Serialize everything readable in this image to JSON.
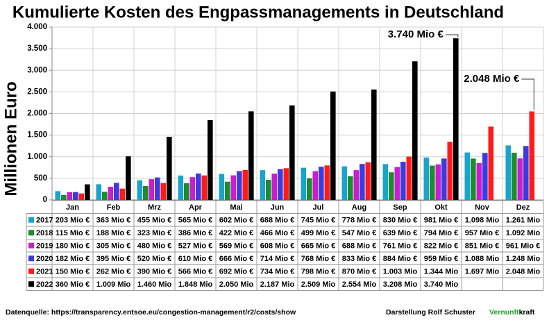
{
  "chart_data": {
    "type": "bar",
    "title": "Kumulierte Kosten des Engpassmanagements in Deutschland",
    "y_label": "Millionen Euro",
    "categories": [
      "Jan",
      "Feb",
      "Mrz",
      "Apr",
      "Mai",
      "Jun",
      "Jul",
      "Aug",
      "Sep",
      "Okt",
      "Nov",
      "Dez"
    ],
    "ylim": [
      0,
      4000
    ],
    "yticks": [
      0,
      500,
      {
        "value": 1000,
        "label": "1.000"
      },
      {
        "value": 1500,
        "label": "1.500"
      },
      {
        "value": 2000,
        "label": "2.000"
      },
      {
        "value": 2500,
        "label": "2.500"
      },
      {
        "value": 3000,
        "label": "3.000"
      },
      {
        "value": 3500,
        "label": "3.500"
      },
      {
        "value": 4000,
        "label": "4.000"
      }
    ],
    "grid": true,
    "series": [
      {
        "name": "2017",
        "color": "#1ba3cc",
        "values": [
          203,
          363,
          455,
          565,
          602,
          688,
          745,
          778,
          830,
          981,
          1098,
          1261
        ],
        "value_labels": [
          "203 Mio €",
          "363 Mio €",
          "455 Mio €",
          "565 Mio €",
          "602 Mio €",
          "688 Mio €",
          "745 Mio €",
          "778 Mio €",
          "830 Mio €",
          "981 Mio €",
          "1.098 Mio",
          "1.261 Mio"
        ]
      },
      {
        "name": "2018",
        "color": "#1c8c2c",
        "values": [
          115,
          188,
          323,
          386,
          422,
          466,
          499,
          547,
          639,
          794,
          957,
          1092
        ],
        "value_labels": [
          "115 Mio €",
          "188 Mio €",
          "323 Mio €",
          "386 Mio €",
          "422 Mio €",
          "466 Mio €",
          "499 Mio €",
          "547 Mio €",
          "639 Mio €",
          "794 Mio €",
          "957 Mio €",
          "1.092 Mio"
        ]
      },
      {
        "name": "2019",
        "color": "#c81ecc",
        "values": [
          180,
          305,
          480,
          527,
          569,
          608,
          665,
          688,
          761,
          822,
          851,
          961
        ],
        "value_labels": [
          "180 Mio €",
          "305 Mio €",
          "480 Mio €",
          "527 Mio €",
          "569 Mio €",
          "608 Mio €",
          "665 Mio €",
          "688 Mio €",
          "761 Mio €",
          "822 Mio €",
          "851 Mio €",
          "961 Mio €"
        ]
      },
      {
        "name": "2020",
        "color": "#3b3be3",
        "values": [
          182,
          395,
          520,
          610,
          666,
          714,
          768,
          833,
          884,
          959,
          1088,
          1248
        ],
        "value_labels": [
          "182 Mio €",
          "395 Mio €",
          "520 Mio €",
          "610 Mio €",
          "666 Mio €",
          "714 Mio €",
          "768 Mio €",
          "833 Mio €",
          "884 Mio €",
          "959 Mio €",
          "1.088 Mio",
          "1.248 Mio"
        ]
      },
      {
        "name": "2021",
        "color": "#ff1a1a",
        "values": [
          150,
          262,
          390,
          566,
          692,
          734,
          798,
          870,
          1003,
          1344,
          1697,
          2048
        ],
        "value_labels": [
          "150 Mio €",
          "262 Mio €",
          "390 Mio €",
          "566 Mio €",
          "692 Mio €",
          "734 Mio €",
          "798 Mio €",
          "870 Mio €",
          "1.003 Mio",
          "1.344 Mio",
          "1.697 Mio",
          "2.048 Mio"
        ]
      },
      {
        "name": "2022",
        "color": "#000000",
        "values": [
          360,
          1009,
          1460,
          1848,
          2050,
          2187,
          2509,
          2554,
          3208,
          3740,
          null,
          null
        ],
        "value_labels": [
          "360 Mio €",
          "1.009 Mio",
          "1.460 Mio",
          "1.848 Mio",
          "2.050 Mio",
          "2.187 Mio",
          "2.509 Mio",
          "2.554 Mio",
          "3.208 Mio",
          "3.740 Mio",
          null,
          null
        ]
      }
    ],
    "annotations": [
      {
        "text": "3.740 Mio €",
        "series": 5,
        "index": 9
      },
      {
        "text": "2.048 Mio €",
        "series": 4,
        "index": 11
      }
    ]
  },
  "footer": {
    "source": "Datenquelle:  https://transparency.entsoe.eu/congestion-management/r2/costs/show",
    "author": "Darstellung  Rolf Schuster",
    "brand_green": "Vernunft",
    "brand_black": "kraft"
  }
}
